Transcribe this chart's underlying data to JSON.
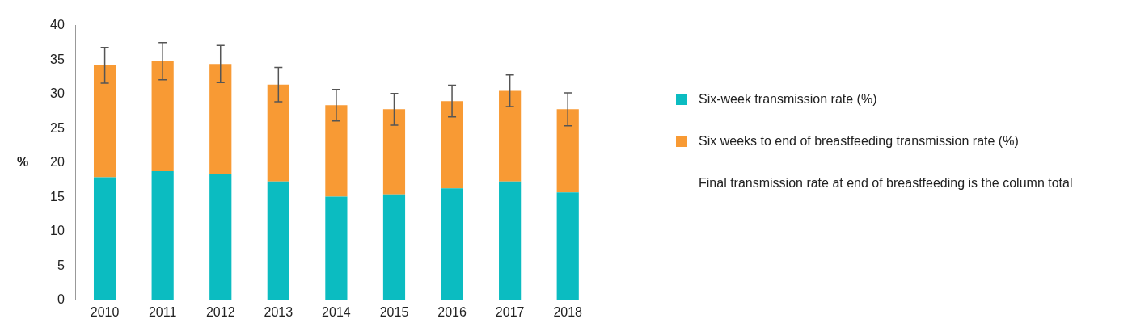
{
  "chart_data": {
    "type": "bar",
    "stacked": true,
    "ylabel": "%",
    "categories": [
      "2010",
      "2011",
      "2012",
      "2013",
      "2014",
      "2015",
      "2016",
      "2017",
      "2018"
    ],
    "series": [
      {
        "name": "Six-week transmission rate (%)",
        "color": "#0bbcc1",
        "values": [
          17.9,
          18.8,
          18.4,
          17.3,
          15.1,
          15.4,
          16.3,
          17.3,
          15.7
        ]
      },
      {
        "name": "Six weeks to end of breastfeeding transmission rate (%)",
        "color": "#f89a34",
        "values": [
          16.3,
          16.0,
          16.0,
          14.1,
          13.3,
          12.4,
          12.7,
          13.2,
          12.1
        ],
        "errors": [
          2.6,
          2.7,
          2.7,
          2.5,
          2.3,
          2.3,
          2.3,
          2.3,
          2.4
        ]
      }
    ],
    "ylim": [
      0,
      40
    ],
    "yticks": [
      0,
      5,
      10,
      15,
      20,
      25,
      30,
      35,
      40
    ],
    "grid": false,
    "legend": "right",
    "annotations": [
      "Final transmission rate at end of breastfeeding is the column total"
    ]
  }
}
